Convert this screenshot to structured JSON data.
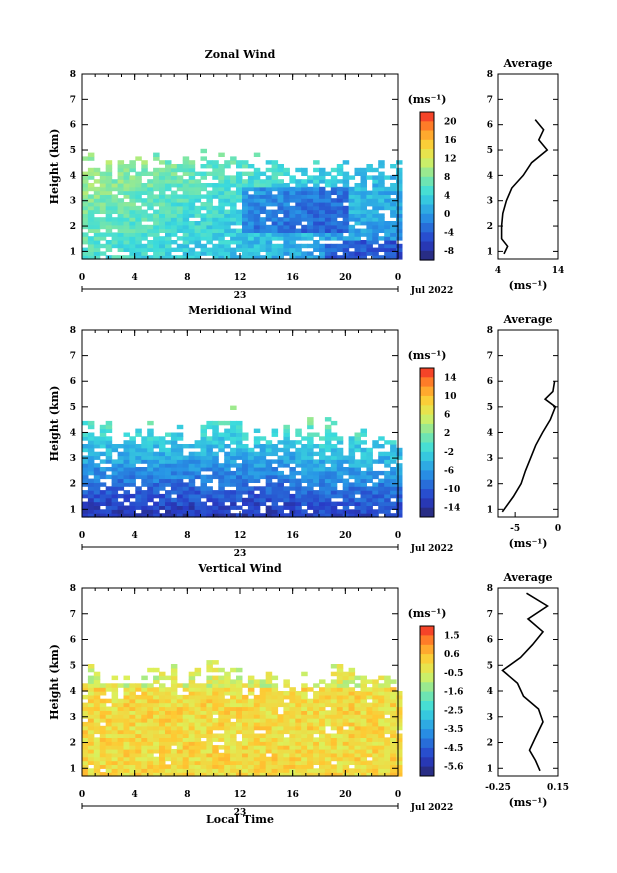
{
  "chart_data": [
    {
      "type": "heatmap",
      "title": "Zonal Wind",
      "ylabel": "Height (km)",
      "xticks": [
        "0",
        "4",
        "8",
        "12",
        "16",
        "20",
        "0"
      ],
      "yticks": [
        "1",
        "2",
        "3",
        "4",
        "5",
        "6",
        "7",
        "8"
      ],
      "xlim": [
        0,
        24
      ],
      "ylim": [
        0.7,
        8
      ],
      "date_label": "23",
      "month_label": "Jul 2022",
      "unit": "(ms⁻¹)",
      "colorbar_ticks": [
        "20",
        "16",
        "12",
        "8",
        "4",
        "0",
        "-4",
        "-8"
      ],
      "colorbar_range": [
        -10,
        22
      ],
      "average": {
        "title": "Average",
        "xlabel": "(ms⁻¹)",
        "xticks": [
          "4",
          "14"
        ],
        "xlim": [
          4,
          14
        ],
        "profile": [
          [
            0.9,
            5.0
          ],
          [
            1.2,
            5.6
          ],
          [
            1.5,
            4.6
          ],
          [
            2.0,
            4.6
          ],
          [
            2.5,
            4.8
          ],
          [
            3.0,
            5.4
          ],
          [
            3.5,
            6.3
          ],
          [
            4.0,
            8.2
          ],
          [
            4.5,
            9.6
          ],
          [
            5.0,
            12.2
          ],
          [
            5.4,
            10.8
          ],
          [
            5.8,
            11.6
          ],
          [
            6.2,
            10.2
          ]
        ]
      }
    },
    {
      "type": "heatmap",
      "title": "Meridional Wind",
      "ylabel": "Height (km)",
      "xticks": [
        "0",
        "4",
        "8",
        "12",
        "16",
        "20",
        "0"
      ],
      "yticks": [
        "1",
        "2",
        "3",
        "4",
        "5",
        "6",
        "7",
        "8"
      ],
      "xlim": [
        0,
        24
      ],
      "ylim": [
        0.7,
        8
      ],
      "date_label": "23",
      "month_label": "Jul 2022",
      "unit": "(ms⁻¹)",
      "colorbar_ticks": [
        "14",
        "10",
        "6",
        "2",
        "-2",
        "-6",
        "-10",
        "-14"
      ],
      "colorbar_range": [
        -16,
        16
      ],
      "average": {
        "title": "Average",
        "xlabel": "(ms⁻¹)",
        "xticks": [
          "-5",
          "0"
        ],
        "xlim": [
          -7,
          0
        ],
        "profile": [
          [
            0.9,
            -6.5
          ],
          [
            1.5,
            -5.2
          ],
          [
            2.0,
            -4.3
          ],
          [
            2.5,
            -3.8
          ],
          [
            3.0,
            -3.2
          ],
          [
            3.5,
            -2.6
          ],
          [
            4.0,
            -1.8
          ],
          [
            4.5,
            -0.9
          ],
          [
            5.0,
            -0.3
          ],
          [
            5.3,
            -1.5
          ],
          [
            5.6,
            -0.6
          ],
          [
            6.0,
            -0.4
          ]
        ]
      }
    },
    {
      "type": "heatmap",
      "title": "Vertical Wind",
      "ylabel": "Height (km)",
      "xlabel": "Local Time",
      "xticks": [
        "0",
        "4",
        "8",
        "12",
        "16",
        "20",
        "0"
      ],
      "yticks": [
        "1",
        "2",
        "3",
        "4",
        "5",
        "6",
        "7",
        "8"
      ],
      "xlim": [
        0,
        24
      ],
      "ylim": [
        0.7,
        8
      ],
      "date_label": "23",
      "month_label": "Jul 2022",
      "unit": "(ms⁻¹)",
      "colorbar_ticks": [
        "1.5",
        "0.6",
        "-0.5",
        "-1.6",
        "-2.5",
        "-3.5",
        "-4.5",
        "-5.6"
      ],
      "colorbar_range": [
        -6,
        2
      ],
      "average": {
        "title": "Average",
        "xlabel": "(ms⁻¹)",
        "xticks": [
          "-0.25",
          "0.15"
        ],
        "xlim": [
          -0.25,
          0.15
        ],
        "profile": [
          [
            0.9,
            0.03
          ],
          [
            1.3,
            0.0
          ],
          [
            1.7,
            -0.04
          ],
          [
            2.2,
            0.0
          ],
          [
            2.8,
            0.05
          ],
          [
            3.3,
            0.02
          ],
          [
            3.8,
            -0.08
          ],
          [
            4.3,
            -0.12
          ],
          [
            4.8,
            -0.22
          ],
          [
            5.3,
            -0.1
          ],
          [
            5.8,
            -0.02
          ],
          [
            6.3,
            0.05
          ],
          [
            6.8,
            -0.05
          ],
          [
            7.3,
            0.08
          ],
          [
            7.8,
            -0.06
          ]
        ]
      }
    }
  ]
}
